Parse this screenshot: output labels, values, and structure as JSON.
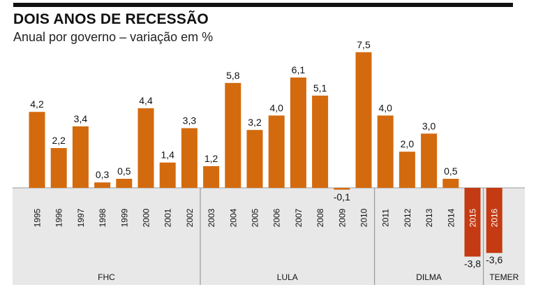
{
  "header": {
    "title": "DOIS ANOS DE RECESSÃO",
    "subtitle": "Anual por governo – variação em %"
  },
  "colors": {
    "bar": "#d46a0e",
    "bar_recession": "#c43a12",
    "band": "#e8e8e8",
    "separator": "#9a9a9a",
    "text": "#111111"
  },
  "chart_data": {
    "type": "bar",
    "title": "DOIS ANOS DE RECESSÃO",
    "subtitle": "Anual por governo – variação em %",
    "categories": [
      "1995",
      "1996",
      "1997",
      "1998",
      "1999",
      "2000",
      "2001",
      "2002",
      "2003",
      "2004",
      "2005",
      "2006",
      "2007",
      "2008",
      "2009",
      "2010",
      "2011",
      "2012",
      "2013",
      "2014",
      "2015",
      "2016"
    ],
    "values": [
      4.2,
      2.2,
      3.4,
      0.3,
      0.5,
      4.4,
      1.4,
      3.3,
      1.2,
      5.8,
      3.2,
      4.0,
      6.1,
      5.1,
      -0.1,
      7.5,
      4.0,
      2.0,
      3.0,
      0.5,
      -3.8,
      -3.6
    ],
    "value_labels": [
      "4,2",
      "2,2",
      "3,4",
      "0,3",
      "0,5",
      "4,4",
      "1,4",
      "3,3",
      "1,2",
      "5,8",
      "3,2",
      "4,0",
      "6,1",
      "5,1",
      "-0,1",
      "7,5",
      "4,0",
      "2,0",
      "3,0",
      "0,5",
      "-3,8",
      "-3,6"
    ],
    "highlighted": [
      "2015",
      "2016"
    ],
    "groups": [
      {
        "name": "FHC",
        "categories": [
          "1995",
          "1996",
          "1997",
          "1998",
          "1999",
          "2000",
          "2001",
          "2002"
        ]
      },
      {
        "name": "LULA",
        "categories": [
          "2003",
          "2004",
          "2005",
          "2006",
          "2007",
          "2008",
          "2009",
          "2010"
        ]
      },
      {
        "name": "DILMA",
        "categories": [
          "2011",
          "2012",
          "2013",
          "2014",
          "2015"
        ]
      },
      {
        "name": "TEMER",
        "categories": [
          "2016"
        ]
      }
    ],
    "ylim": [
      -3.8,
      7.5
    ],
    "grid": false,
    "legend": "none"
  }
}
